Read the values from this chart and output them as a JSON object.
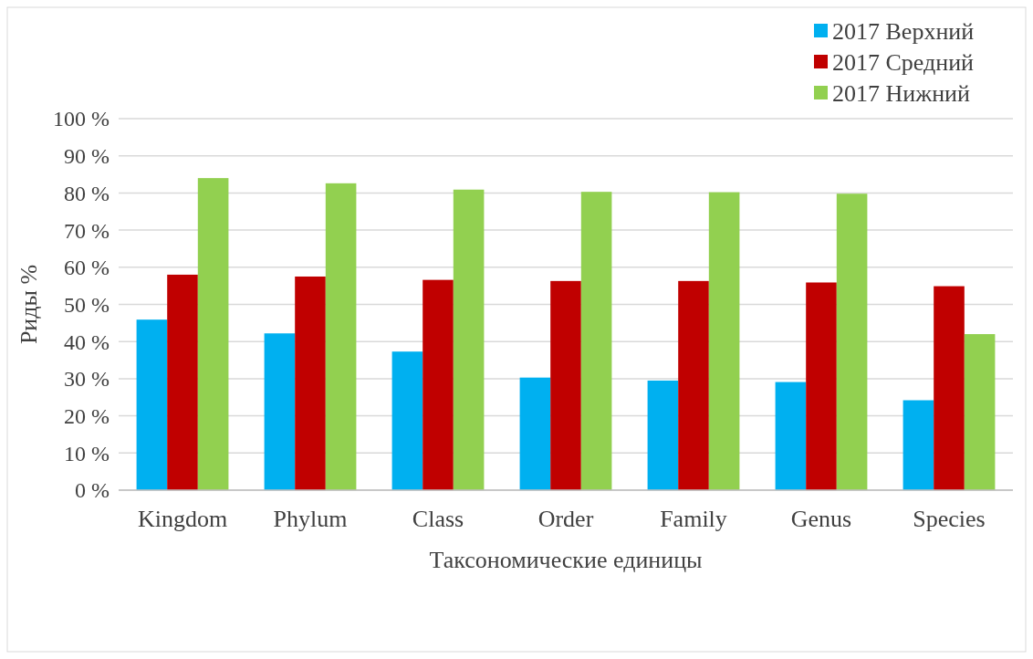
{
  "chart_data": {
    "type": "bar",
    "xlabel": "Таксономические единицы",
    "ylabel": "Риды %",
    "categories": [
      "Kingdom",
      "Phylum",
      "Class",
      "Order",
      "Family",
      "Genus",
      "Species"
    ],
    "series": [
      {
        "name": "2017 Верхний",
        "color": "#00b0f0",
        "values": [
          45.9,
          42.2,
          37.3,
          30.3,
          29.5,
          29.1,
          24.2
        ]
      },
      {
        "name": "2017 Средний",
        "color": "#c00000",
        "values": [
          58.0,
          57.5,
          56.6,
          56.3,
          56.3,
          55.9,
          54.9
        ]
      },
      {
        "name": "2017 Нижний",
        "color": "#92d050",
        "values": [
          84.0,
          82.6,
          80.9,
          80.3,
          80.2,
          79.8,
          42.0
        ]
      }
    ],
    "ylim": [
      0,
      100
    ],
    "yticks": [
      {
        "value": 0,
        "label": "0 %"
      },
      {
        "value": 10,
        "label": "10 %"
      },
      {
        "value": 20,
        "label": "20 %"
      },
      {
        "value": 30,
        "label": "30 %"
      },
      {
        "value": 40,
        "label": "40 %"
      },
      {
        "value": 50,
        "label": "50 %"
      },
      {
        "value": 60,
        "label": "60 %"
      },
      {
        "value": 70,
        "label": "70 %"
      },
      {
        "value": 80,
        "label": "80 %"
      },
      {
        "value": 90,
        "label": "90 %"
      },
      {
        "value": 100,
        "label": "100 %"
      }
    ],
    "grid": "y",
    "legend": "top right"
  }
}
